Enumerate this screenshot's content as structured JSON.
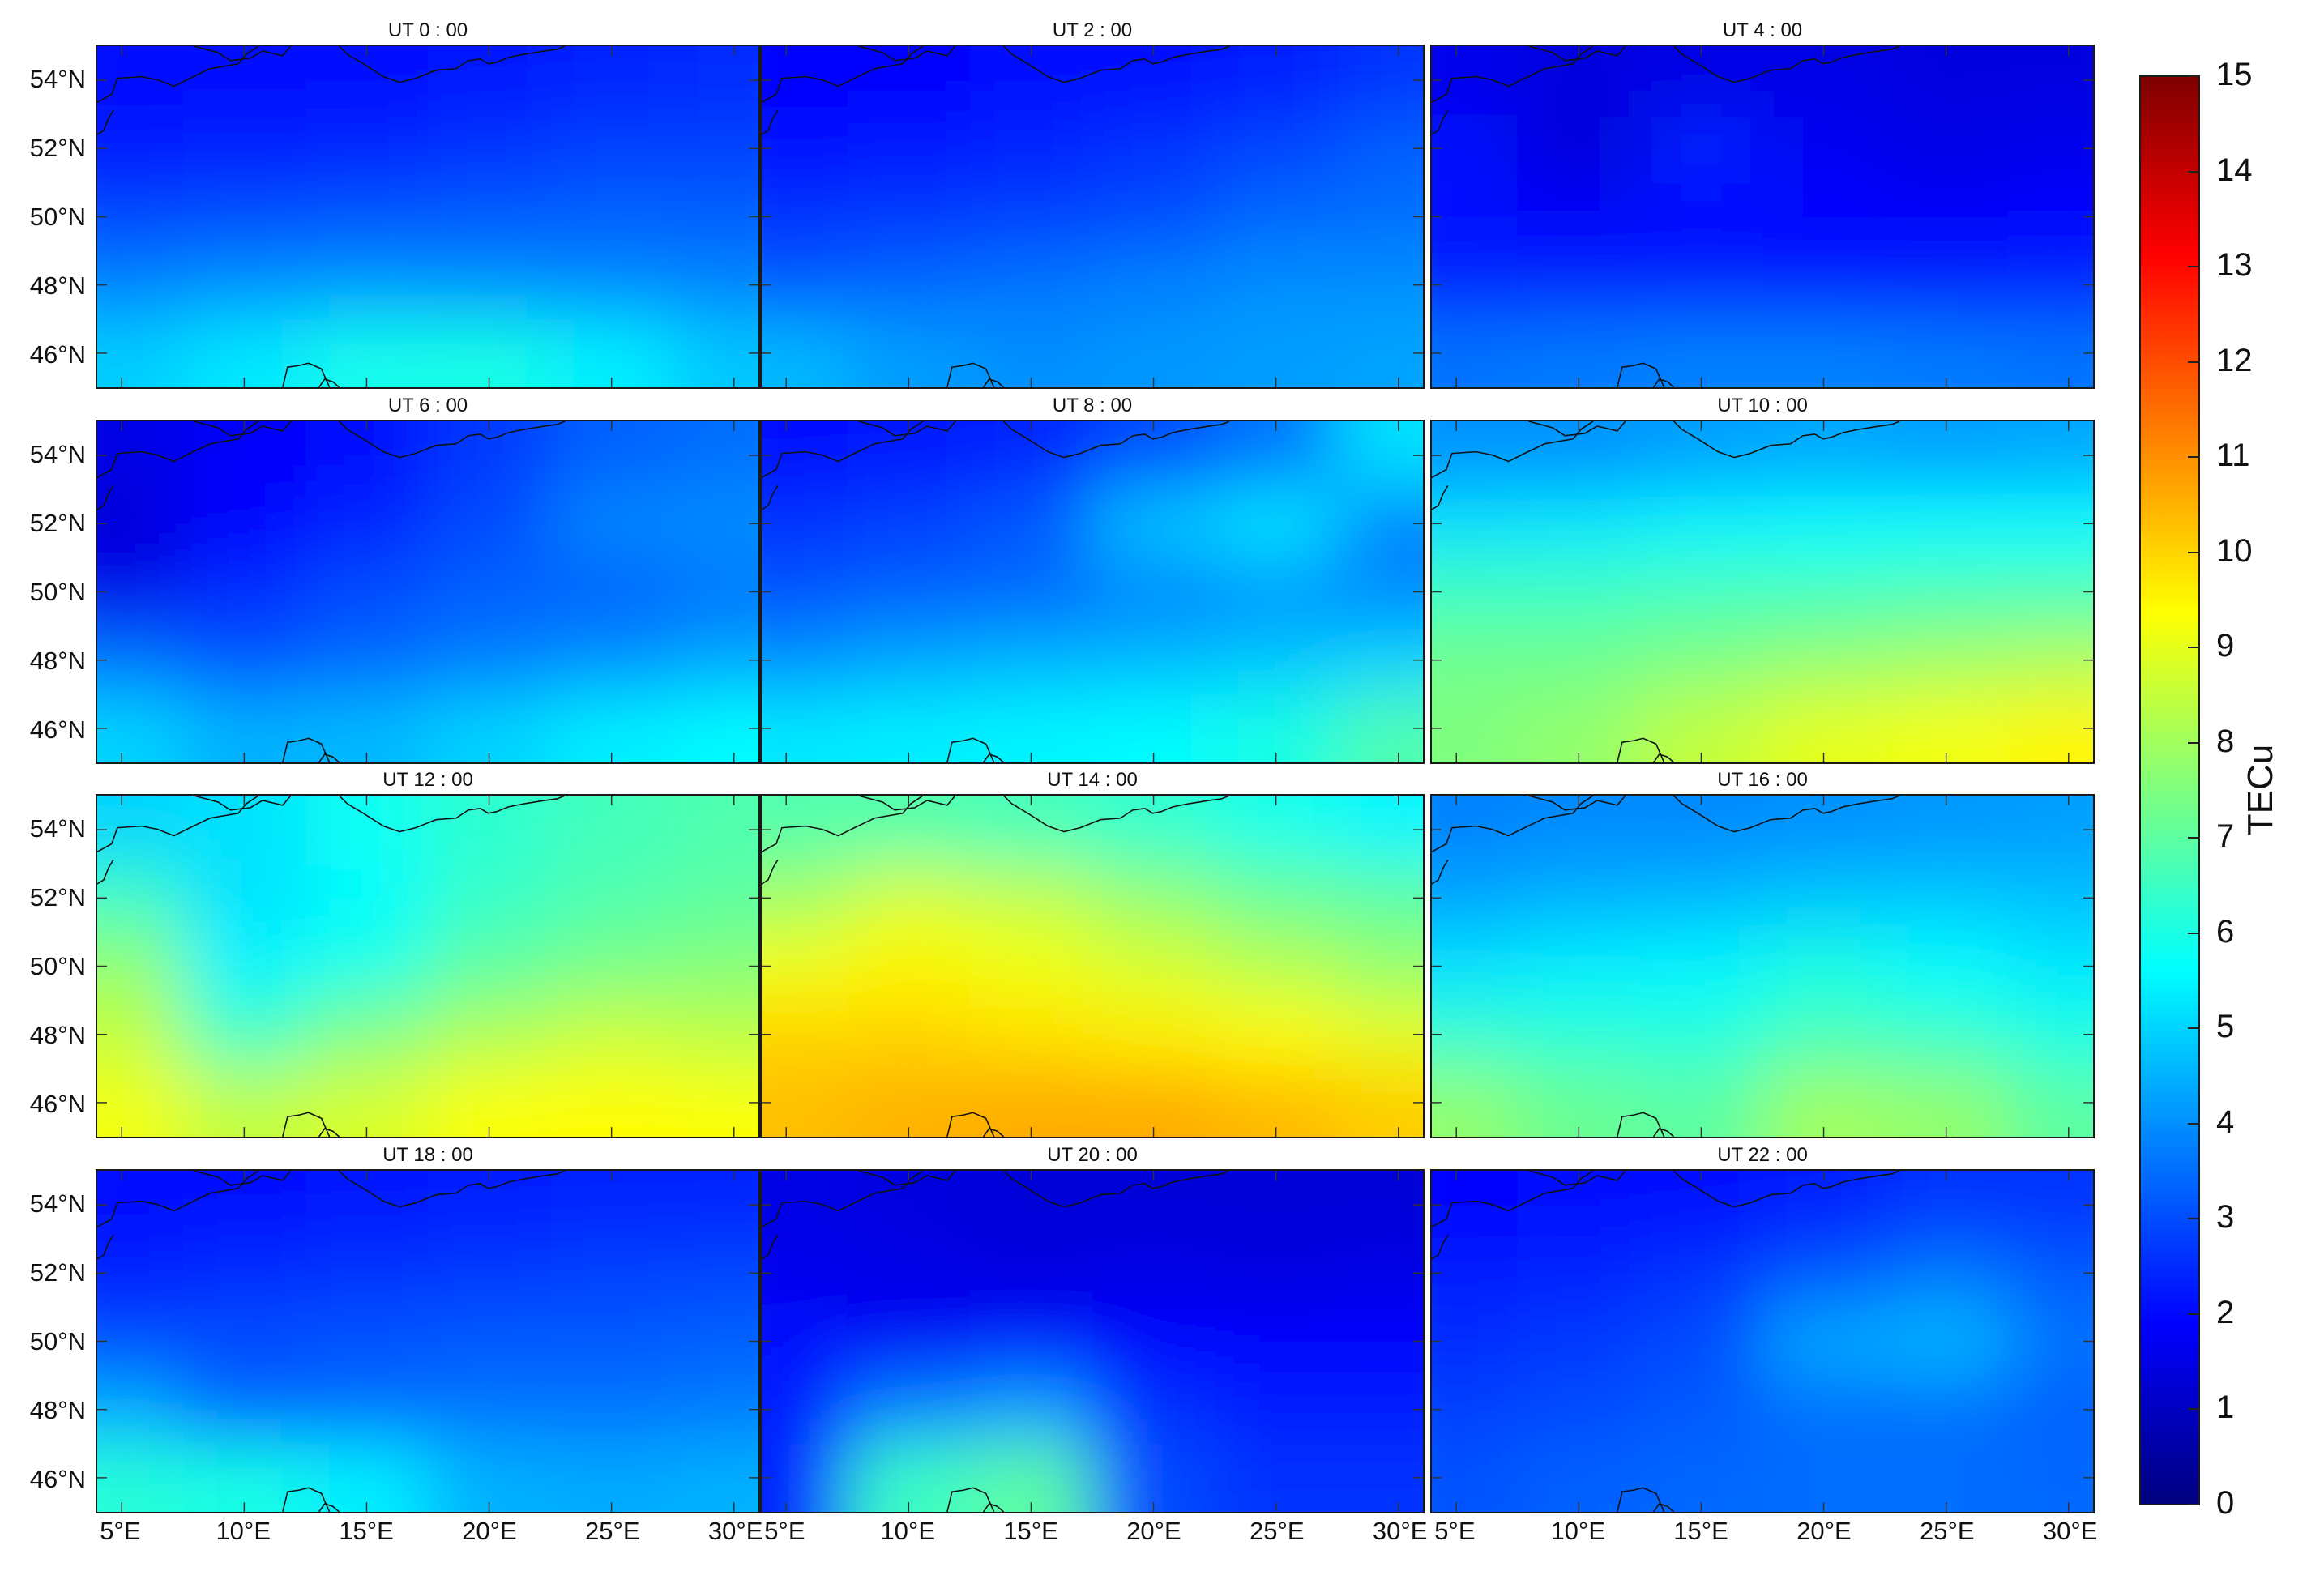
{
  "figure": {
    "colorbar": {
      "label": "TECu",
      "min": 0,
      "max": 15,
      "ticks": [
        "0",
        "1",
        "2",
        "3",
        "4",
        "5",
        "6",
        "7",
        "8",
        "9",
        "10",
        "11",
        "12",
        "13",
        "14",
        "15"
      ],
      "colormap": "jet",
      "colors": [
        "#00007f",
        "#0000ff",
        "#007fff",
        "#00ffff",
        "#7fff7f",
        "#ffff00",
        "#ff7f00",
        "#ff0000",
        "#7f0000"
      ]
    },
    "lat_ticks": [
      "54°N",
      "52°N",
      "50°N",
      "48°N",
      "46°N"
    ],
    "lon_ticks": [
      "5°E",
      "10°E",
      "15°E",
      "20°E",
      "25°E",
      "30°E"
    ]
  },
  "chart_data": {
    "type": "heatmap",
    "units": "TECu",
    "lon_range": [
      4,
      31
    ],
    "lat_range": [
      45,
      55
    ],
    "lat_ticks": [
      54,
      52,
      50,
      48,
      46
    ],
    "lon_ticks": [
      5,
      10,
      15,
      20,
      25,
      30
    ],
    "grid_lon": [
      5,
      10,
      15,
      20,
      25,
      30
    ],
    "grid_lat": [
      54,
      52,
      50,
      48,
      46
    ],
    "panels": [
      {
        "title": "UT 0 : 00",
        "values": [
          [
            2.0,
            2.0,
            2.0,
            2.2,
            2.4,
            2.5
          ],
          [
            2.2,
            2.3,
            2.4,
            2.6,
            2.8,
            2.8
          ],
          [
            2.9,
            3.0,
            3.1,
            3.2,
            3.3,
            3.3
          ],
          [
            3.8,
            4.0,
            4.1,
            4.0,
            3.9,
            3.8
          ],
          [
            4.9,
            5.3,
            5.9,
            6.0,
            5.4,
            4.8
          ]
        ]
      },
      {
        "title": "UT 2 : 00",
        "values": [
          [
            1.9,
            1.9,
            2.0,
            2.1,
            2.3,
            2.6
          ],
          [
            2.1,
            2.2,
            2.4,
            2.6,
            2.9,
            3.3
          ],
          [
            2.6,
            2.7,
            2.8,
            3.0,
            3.4,
            3.5
          ],
          [
            3.2,
            3.4,
            3.6,
            3.8,
            4.0,
            4.0
          ],
          [
            4.6,
            4.2,
            4.0,
            4.1,
            4.2,
            4.3
          ]
        ]
      },
      {
        "title": "UT 4 : 00",
        "values": [
          [
            1.6,
            1.4,
            1.5,
            1.5,
            1.4,
            1.4
          ],
          [
            2.0,
            1.3,
            2.4,
            1.7,
            1.5,
            1.6
          ],
          [
            2.0,
            1.8,
            1.9,
            1.9,
            1.8,
            1.9
          ],
          [
            2.4,
            2.4,
            2.4,
            2.3,
            2.3,
            2.4
          ],
          [
            3.6,
            3.7,
            3.8,
            3.8,
            3.7,
            3.6
          ]
        ]
      },
      {
        "title": "UT 6 : 00",
        "values": [
          [
            1.5,
            1.8,
            2.1,
            2.7,
            3.3,
            3.5
          ],
          [
            1.3,
            1.9,
            2.4,
            3.0,
            3.9,
            4.0
          ],
          [
            1.6,
            2.5,
            3.0,
            3.3,
            3.3,
            3.6
          ],
          [
            3.5,
            3.1,
            3.4,
            3.7,
            4.0,
            4.3
          ],
          [
            5.0,
            4.5,
            4.6,
            5.0,
            5.4,
            5.6
          ]
        ]
      },
      {
        "title": "UT 8 : 00",
        "values": [
          [
            2.0,
            2.2,
            2.4,
            3.0,
            3.6,
            5.2
          ],
          [
            2.6,
            2.8,
            3.2,
            4.8,
            5.3,
            3.8
          ],
          [
            3.1,
            3.3,
            3.4,
            3.8,
            4.0,
            3.9
          ],
          [
            4.0,
            4.3,
            4.5,
            4.6,
            4.8,
            5.0
          ],
          [
            5.3,
            5.4,
            5.5,
            5.6,
            6.0,
            6.8
          ]
        ]
      },
      {
        "title": "UT 10 : 00",
        "values": [
          [
            4.0,
            4.0,
            4.2,
            4.3,
            4.2,
            4.3
          ],
          [
            5.2,
            5.3,
            5.5,
            5.6,
            5.6,
            5.6
          ],
          [
            6.5,
            6.5,
            6.6,
            6.6,
            6.7,
            6.7
          ],
          [
            7.3,
            7.3,
            7.5,
            7.8,
            8.0,
            8.2
          ],
          [
            7.5,
            7.8,
            8.5,
            9.0,
            9.2,
            9.5
          ]
        ]
      },
      {
        "title": "UT 12 : 00",
        "values": [
          [
            5.0,
            5.2,
            5.8,
            6.3,
            6.6,
            6.8
          ],
          [
            6.5,
            5.2,
            5.6,
            6.4,
            6.8,
            7.0
          ],
          [
            7.8,
            5.5,
            6.0,
            7.0,
            7.4,
            7.6
          ],
          [
            8.5,
            6.5,
            7.5,
            8.2,
            8.6,
            8.4
          ],
          [
            9.2,
            8.5,
            8.8,
            9.3,
            9.4,
            9.3
          ]
        ]
      },
      {
        "title": "UT 14 : 00",
        "values": [
          [
            6.8,
            6.8,
            6.6,
            6.3,
            5.9,
            5.5
          ],
          [
            8.0,
            8.8,
            8.5,
            7.8,
            7.2,
            7.0
          ],
          [
            9.2,
            9.5,
            9.2,
            8.8,
            8.3,
            7.8
          ],
          [
            10.0,
            10.0,
            9.8,
            9.6,
            9.4,
            9.0
          ],
          [
            10.3,
            10.5,
            10.6,
            10.6,
            10.4,
            10.1
          ]
        ]
      },
      {
        "title": "UT 16 : 00",
        "values": [
          [
            3.8,
            3.9,
            3.9,
            4.0,
            4.1,
            4.2
          ],
          [
            4.3,
            4.5,
            4.6,
            4.8,
            4.8,
            4.7
          ],
          [
            5.2,
            5.4,
            5.5,
            6.0,
            5.6,
            5.3
          ],
          [
            6.3,
            6.2,
            6.1,
            6.6,
            6.4,
            6.0
          ],
          [
            7.8,
            7.2,
            7.0,
            8.0,
            7.8,
            7.0
          ]
        ]
      },
      {
        "title": "UT 18 : 00",
        "values": [
          [
            2.0,
            2.1,
            2.2,
            2.3,
            2.4,
            2.4
          ],
          [
            2.3,
            2.5,
            2.6,
            2.7,
            2.8,
            2.9
          ],
          [
            3.0,
            3.0,
            3.1,
            3.2,
            3.2,
            3.3
          ],
          [
            4.4,
            3.4,
            3.5,
            3.6,
            3.6,
            3.7
          ],
          [
            6.2,
            6.0,
            5.4,
            4.5,
            4.4,
            4.5
          ]
        ]
      },
      {
        "title": "UT 20 : 00",
        "values": [
          [
            1.5,
            1.4,
            1.3,
            1.3,
            1.3,
            1.3
          ],
          [
            1.6,
            1.5,
            1.4,
            1.5,
            1.4,
            1.5
          ],
          [
            2.0,
            1.8,
            2.0,
            1.9,
            1.9,
            1.9
          ],
          [
            2.3,
            3.8,
            4.2,
            2.6,
            2.3,
            2.3
          ],
          [
            2.4,
            6.5,
            7.0,
            3.0,
            2.6,
            2.6
          ]
        ]
      },
      {
        "title": "UT 22 : 00",
        "values": [
          [
            1.9,
            2.0,
            2.1,
            2.3,
            2.6,
            2.6
          ],
          [
            2.3,
            2.4,
            2.6,
            3.1,
            3.6,
            3.2
          ],
          [
            2.5,
            2.7,
            3.0,
            4.4,
            4.6,
            3.6
          ],
          [
            2.8,
            3.0,
            3.2,
            3.5,
            3.5,
            3.3
          ],
          [
            3.1,
            3.3,
            3.4,
            3.5,
            3.5,
            3.4
          ]
        ]
      }
    ]
  }
}
